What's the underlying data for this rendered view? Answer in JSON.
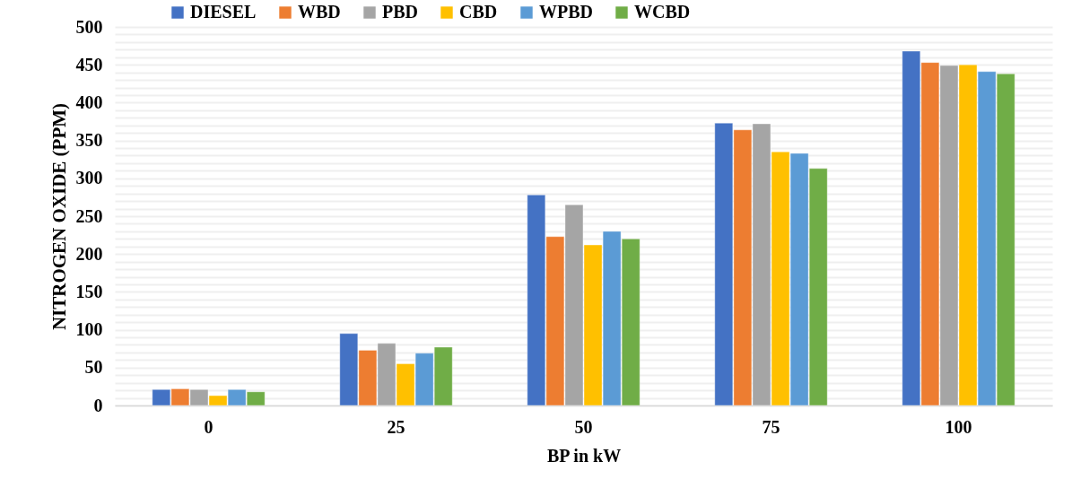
{
  "chart_data": {
    "type": "bar",
    "xlabel": "BP in kW",
    "ylabel": "NITROGEN OXIDE (PPM)",
    "categories": [
      "0",
      "25",
      "50",
      "75",
      "100"
    ],
    "series": [
      {
        "name": "DIESEL",
        "color": "#4472c4",
        "values": [
          21,
          95,
          278,
          373,
          468
        ]
      },
      {
        "name": "WBD",
        "color": "#ed7d31",
        "values": [
          22,
          73,
          223,
          364,
          453
        ]
      },
      {
        "name": "PBD",
        "color": "#a5a5a5",
        "values": [
          21,
          82,
          265,
          372,
          449
        ]
      },
      {
        "name": "CBD",
        "color": "#ffc000",
        "values": [
          13,
          55,
          212,
          335,
          450
        ]
      },
      {
        "name": "WPBD",
        "color": "#5b9bd5",
        "values": [
          21,
          69,
          230,
          333,
          441
        ]
      },
      {
        "name": "WCBD",
        "color": "#70ad47",
        "values": [
          18,
          77,
          220,
          313,
          438
        ]
      }
    ],
    "ylim": [
      0,
      500
    ],
    "yticks": [
      0,
      {
        "value": 10,
        "label": null
      },
      {
        "value": 20,
        "label": null
      },
      {
        "value": 30,
        "label": null
      },
      {
        "value": 40,
        "label": null
      },
      50,
      {
        "value": 60,
        "label": null
      },
      {
        "value": 70,
        "label": null
      },
      {
        "value": 80,
        "label": null
      },
      {
        "value": 90,
        "label": null
      },
      100,
      {
        "value": 110,
        "label": null
      },
      {
        "value": 120,
        "label": null
      },
      {
        "value": 130,
        "label": null
      },
      {
        "value": 140,
        "label": null
      },
      150,
      {
        "value": 160,
        "label": null
      },
      {
        "value": 170,
        "label": null
      },
      {
        "value": 180,
        "label": null
      },
      {
        "value": 190,
        "label": null
      },
      200,
      {
        "value": 210,
        "label": null
      },
      {
        "value": 220,
        "label": null
      },
      {
        "value": 230,
        "label": null
      },
      {
        "value": 240,
        "label": null
      },
      250,
      {
        "value": 260,
        "label": null
      },
      {
        "value": 270,
        "label": null
      },
      {
        "value": 280,
        "label": null
      },
      {
        "value": 290,
        "label": null
      },
      300,
      {
        "value": 310,
        "label": null
      },
      {
        "value": 320,
        "label": null
      },
      {
        "value": 330,
        "label": null
      },
      {
        "value": 340,
        "label": null
      },
      350,
      {
        "value": 360,
        "label": null
      },
      {
        "value": 370,
        "label": null
      },
      {
        "value": 380,
        "label": null
      },
      {
        "value": 390,
        "label": null
      },
      400,
      {
        "value": 410,
        "label": null
      },
      {
        "value": 420,
        "label": null
      },
      {
        "value": 430,
        "label": null
      },
      {
        "value": 440,
        "label": null
      },
      450,
      {
        "value": 460,
        "label": null
      },
      {
        "value": 470,
        "label": null
      },
      {
        "value": 480,
        "label": null
      },
      {
        "value": 490,
        "label": null
      },
      500
    ],
    "grid": "y",
    "legend": "top"
  }
}
